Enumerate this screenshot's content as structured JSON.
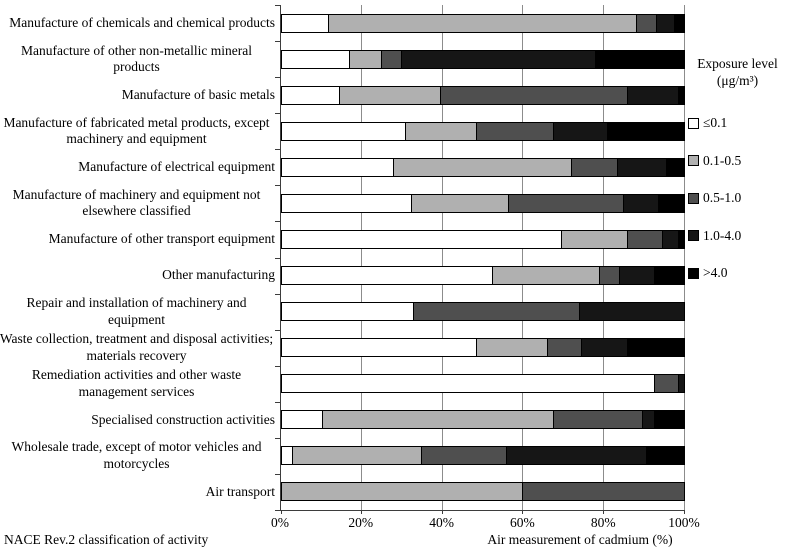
{
  "chart_data": {
    "type": "bar",
    "variant": "horizontal-stacked-100",
    "title": "",
    "xlabel": "Air measurement of cadmium (%)",
    "ylabel": "NACE Rev.2 classification of activity",
    "xlim": [
      0,
      100
    ],
    "x_ticks": [
      "0%",
      "20%",
      "40%",
      "60%",
      "80%",
      "100%"
    ],
    "grid": "vertical",
    "legend_position": "right",
    "legend": {
      "title_line1": "Exposure level",
      "title_line2": "(μg/m³)",
      "entries": [
        {
          "label": "≤0.1",
          "color": "#ffffff"
        },
        {
          "label": "0.1-0.5",
          "color": "#b0b0b0"
        },
        {
          "label": "0.5-1.0",
          "color": "#4f4f4f"
        },
        {
          "label": "1.0-4.0",
          "color": "#161616"
        },
        {
          "label": ">4.0",
          "color": "#000000"
        }
      ]
    },
    "series_names": [
      "≤0.1",
      "0.1-0.5",
      "0.5-1.0",
      "1.0-4.0",
      ">4.0"
    ],
    "categories": [
      "Manufacture of chemicals and chemical products",
      "Manufacture of other non-metallic mineral products",
      "Manufacture of basic metals",
      "Manufacture of fabricated metal products, except machinery and equipment",
      "Manufacture of electrical equipment",
      "Manufacture of machinery and equipment not elsewhere classified",
      "Manufacture of other transport equipment",
      "Other manufacturing",
      "Repair and installation of machinery and equipment",
      "Waste collection, treatment and disposal activities; materials recovery",
      "Remediation activities and other waste management services",
      "Specialised construction activities",
      "Wholesale trade, except of motor vehicles and motorcycles",
      "Air transport"
    ],
    "values": [
      [
        12,
        76,
        5,
        4.5,
        2.5
      ],
      [
        17,
        8,
        5,
        48,
        22
      ],
      [
        14.5,
        25,
        46.5,
        12.5,
        1.5
      ],
      [
        31,
        17.5,
        19,
        13.5,
        19
      ],
      [
        28,
        44,
        11.5,
        12,
        4.5
      ],
      [
        32.5,
        24,
        28.5,
        8.5,
        6.5
      ],
      [
        69.5,
        16.5,
        8.5,
        4,
        1.5
      ],
      [
        52.5,
        26.5,
        5,
        8.5,
        7.5
      ],
      [
        33,
        0,
        41,
        26,
        0
      ],
      [
        48.5,
        17.5,
        8.5,
        11.5,
        14
      ],
      [
        92.5,
        0,
        6,
        1.5,
        0
      ],
      [
        10.5,
        57,
        22,
        3,
        7.5
      ],
      [
        3,
        32,
        21,
        34.5,
        9.5
      ],
      [
        0,
        60,
        40,
        0,
        0
      ]
    ],
    "footer_left": "NACE Rev.2 classification of activity",
    "footer_right": "Air measurement of cadmium (%)"
  }
}
